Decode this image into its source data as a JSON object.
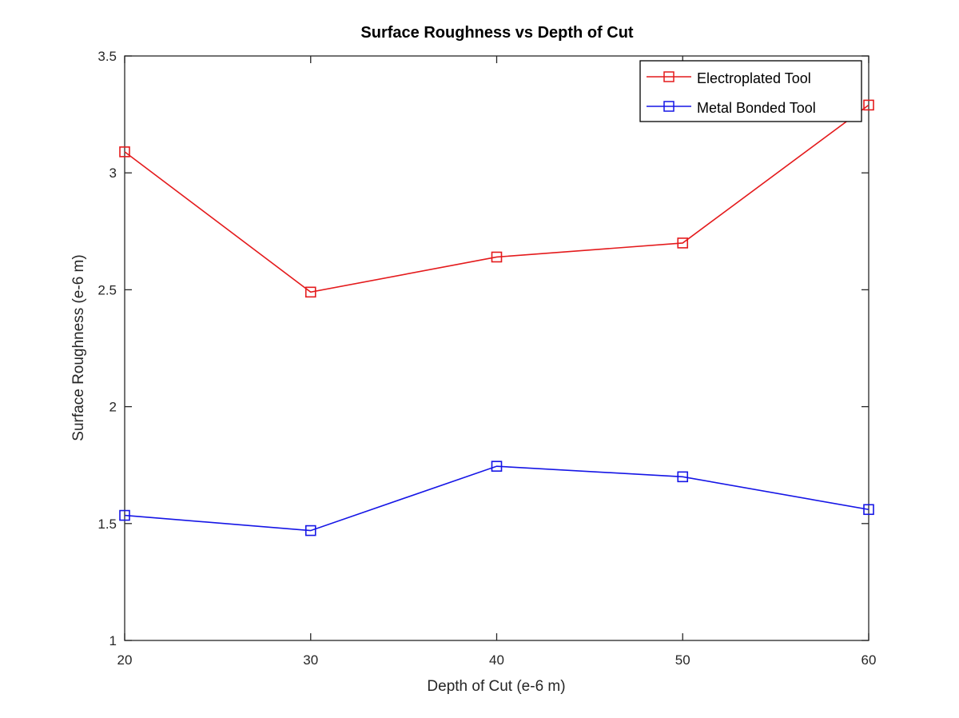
{
  "chart_data": {
    "type": "line",
    "title": "Surface Roughness vs Depth of Cut",
    "xlabel": "Depth of Cut (e-6 m)",
    "ylabel": "Surface Roughness (e-6 m)",
    "xlim": [
      20,
      60
    ],
    "ylim": [
      1,
      3.5
    ],
    "x_ticks": [
      "20",
      "30",
      "40",
      "50",
      "60"
    ],
    "y_ticks": [
      "1",
      "1.5",
      "2",
      "2.5",
      "3",
      "3.5"
    ],
    "x": [
      20,
      30,
      40,
      50,
      60
    ],
    "grid": false,
    "legend_position": "top-right",
    "marker": "square",
    "series": [
      {
        "name": "Electroplated Tool",
        "color": "#e41a1c",
        "values": [
          3.09,
          2.49,
          2.64,
          2.7,
          3.29
        ]
      },
      {
        "name": "Metal Bonded Tool",
        "color": "#1515e6",
        "values": [
          1.535,
          1.47,
          1.745,
          1.7,
          1.56
        ]
      }
    ]
  }
}
